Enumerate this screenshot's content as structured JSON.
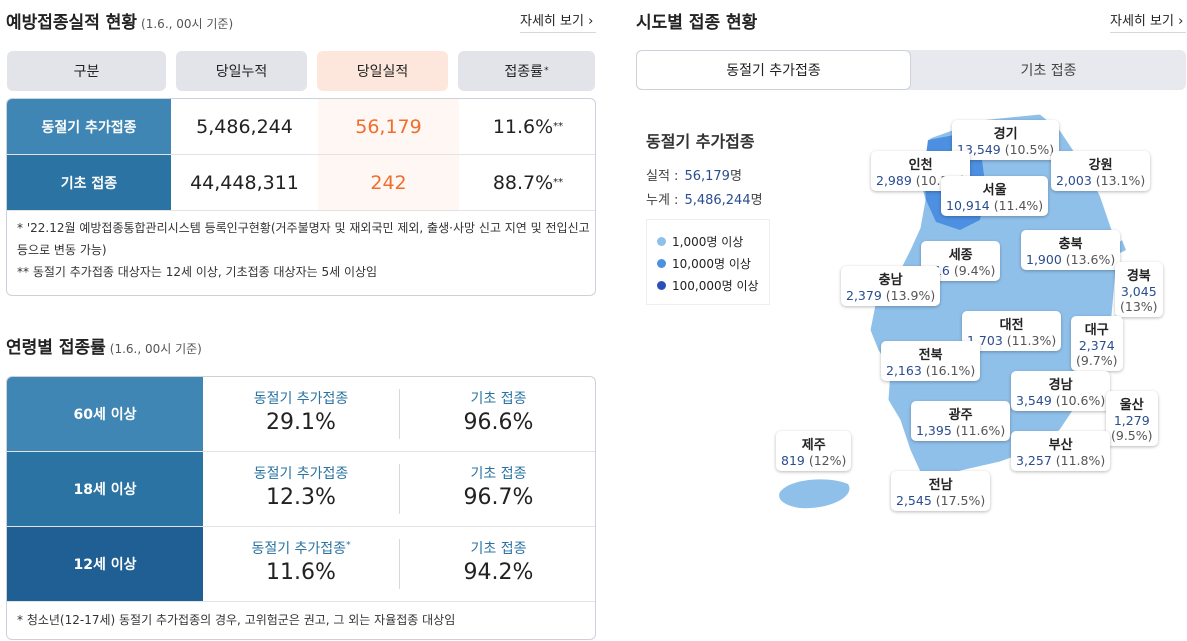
{
  "left": {
    "title": "예방접종실적 현황",
    "title_note": "(1.6., 00시 기준)",
    "more": "자세히 보기",
    "headers": [
      "구분",
      "당일누적",
      "당일실적",
      "접종률"
    ],
    "rate_mark": "*",
    "rows": [
      {
        "label": "동절기 추가접종",
        "cumulative": "5,486,244",
        "daily": "56,179",
        "rate": "11.6%",
        "mark": "**"
      },
      {
        "label": "기초 접종",
        "cumulative": "44,448,311",
        "daily": "242",
        "rate": "88.7%",
        "mark": "**"
      }
    ],
    "notes": [
      "* '22.12월 예방접종통합관리시스템 등록인구현황(거주불명자 및 재외국민 제외, 출생·사망 신고 지연 및 전입신고 등으로 변동 가능)",
      "** 동절기 추가접종 대상자는 12세 이상, 기초접종 대상자는 5세 이상임"
    ]
  },
  "age": {
    "title": "연령별 접종률",
    "title_note": "(1.6., 00시 기준)",
    "rows": [
      {
        "label": "60세 이상",
        "a_label": "동절기 추가접종",
        "a_mark": "",
        "a_value": "29.1%",
        "b_label": "기초 접종",
        "b_value": "96.6%",
        "color": "#3f86b4"
      },
      {
        "label": "18세 이상",
        "a_label": "동절기 추가접종",
        "a_mark": "",
        "a_value": "12.3%",
        "b_label": "기초 접종",
        "b_value": "96.7%",
        "color": "#2a73a3"
      },
      {
        "label": "12세 이상",
        "a_label": "동절기 추가접종",
        "a_mark": "*",
        "a_value": "11.6%",
        "b_label": "기초 접종",
        "b_value": "94.2%",
        "color": "#1f5f93"
      }
    ],
    "note": "* 청소년(12-17세) 동절기 추가접종의 경우, 고위험군은 권고, 그 외는 자율접종 대상임"
  },
  "right": {
    "title": "시도별 접종 현황",
    "more": "자세히 보기",
    "tabs": [
      "동절기 추가접종",
      "기초 접종"
    ],
    "summary_title": "동절기 추가접종",
    "actual_label": "실적 :",
    "actual_value": "56,179",
    "total_label": "누계 :",
    "total_value": "5,486,244",
    "unit": "명",
    "legend": [
      {
        "label": "1,000명 이상",
        "color": "#8fc0ea"
      },
      {
        "label": "10,000명 이상",
        "color": "#4d8fe0"
      },
      {
        "label": "100,000명 이상",
        "color": "#2a50b8"
      }
    ],
    "regions": [
      {
        "name": "경기",
        "value": "13,549",
        "pct": "(10.5%)"
      },
      {
        "name": "인천",
        "value": "2,989",
        "pct": "(10.2%)"
      },
      {
        "name": "서울",
        "value": "10,914",
        "pct": "(11.4%)"
      },
      {
        "name": "강원",
        "value": "2,003",
        "pct": "(13.1%)"
      },
      {
        "name": "세종",
        "value": "316",
        "pct": "(9.4%)"
      },
      {
        "name": "충북",
        "value": "1,900",
        "pct": "(13.6%)"
      },
      {
        "name": "충남",
        "value": "2,379",
        "pct": "(13.9%)"
      },
      {
        "name": "경북",
        "value": "3,045",
        "pct": "(13%)"
      },
      {
        "name": "대전",
        "value": "1,703",
        "pct": "(11.3%)"
      },
      {
        "name": "대구",
        "value": "2,374",
        "pct": "(9.7%)"
      },
      {
        "name": "전북",
        "value": "2,163",
        "pct": "(16.1%)"
      },
      {
        "name": "경남",
        "value": "3,549",
        "pct": "(10.6%)"
      },
      {
        "name": "울산",
        "value": "1,279",
        "pct": "(9.5%)"
      },
      {
        "name": "광주",
        "value": "1,395",
        "pct": "(11.6%)"
      },
      {
        "name": "제주",
        "value": "819",
        "pct": "(12%)"
      },
      {
        "name": "부산",
        "value": "3,257",
        "pct": "(11.8%)"
      },
      {
        "name": "전남",
        "value": "2,545",
        "pct": "(17.5%)"
      }
    ]
  }
}
